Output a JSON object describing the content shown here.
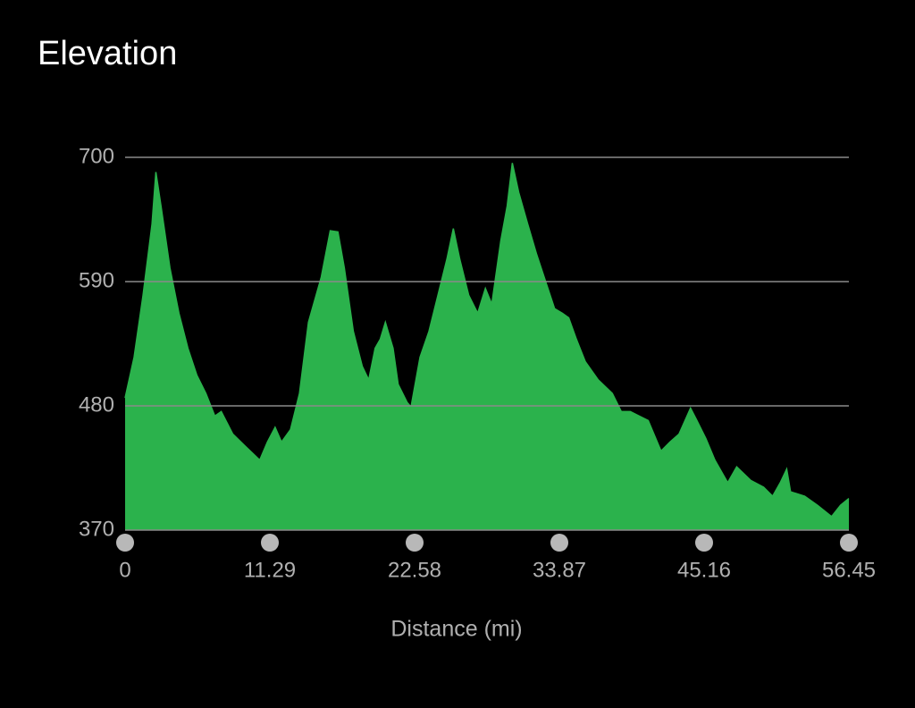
{
  "chart_data": {
    "type": "area",
    "title": "Elevation",
    "x_label": "Distance (mi)",
    "color": "#2bb24c",
    "grid": true,
    "xlim": [
      0,
      56.45
    ],
    "ylim": [
      370,
      700
    ],
    "xticks": [
      0,
      11.29,
      22.58,
      33.87,
      45.16,
      56.45
    ],
    "yticks": [
      370,
      480,
      590,
      700
    ],
    "x": [
      0,
      0.7,
      1.4,
      2.1,
      2.4,
      2.8,
      3.5,
      4.2,
      4.9,
      5.6,
      6.3,
      7.0,
      7.5,
      8.4,
      9.4,
      10.5,
      11.1,
      11.7,
      12.2,
      12.9,
      13.6,
      14.3,
      15.3,
      16.0,
      16.6,
      17.1,
      17.8,
      18.5,
      19.0,
      19.5,
      19.9,
      20.3,
      20.9,
      21.3,
      22.0,
      22.3,
      23.0,
      23.7,
      24.4,
      25.1,
      25.6,
      26.1,
      26.8,
      27.5,
      28.1,
      28.6,
      29.3,
      29.8,
      30.2,
      30.7,
      31.4,
      32.1,
      32.8,
      33.5,
      34.1,
      34.6,
      35.2,
      35.9,
      36.9,
      38.0,
      38.7,
      39.4,
      40.1,
      40.8,
      41.8,
      42.5,
      43.2,
      44.1,
      44.6,
      45.3,
      46.0,
      47.0,
      47.7,
      48.8,
      49.8,
      50.5,
      51.1,
      51.6,
      51.9,
      53.0,
      54.0,
      55.1,
      55.8,
      56.45
    ],
    "values": [
      487,
      523,
      578,
      641,
      687,
      657,
      602,
      562,
      531,
      507,
      491,
      471,
      475,
      455,
      444,
      432,
      448,
      461,
      448,
      459,
      491,
      554,
      594,
      635,
      634,
      602,
      546,
      515,
      503,
      531,
      539,
      554,
      531,
      499,
      483,
      479,
      523,
      546,
      578,
      610,
      637,
      610,
      578,
      562,
      584,
      570,
      626,
      657,
      695,
      669,
      641,
      614,
      590,
      566,
      562,
      558,
      539,
      519,
      503,
      491,
      475,
      475,
      471,
      467,
      440,
      448,
      455,
      478,
      467,
      451,
      432,
      412,
      426,
      414,
      408,
      400,
      412,
      424,
      404,
      400,
      392,
      382,
      392,
      398
    ]
  }
}
